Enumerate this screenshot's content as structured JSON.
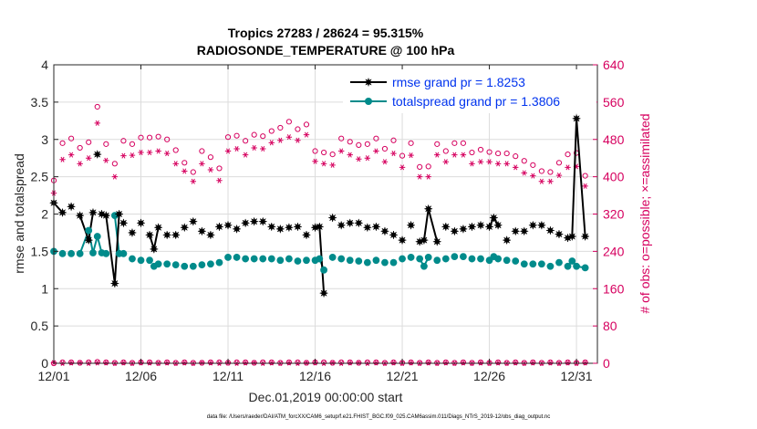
{
  "chart_data": {
    "type": "line",
    "title_line1": "Tropics 27283 / 28624 = 95.315%",
    "title_line2": "RADIOSONDE_TEMPERATURE @ 100 hPa",
    "xlabel": "Dec.01,2019 00:00:00 start",
    "ylabel": "rmse and totalspread",
    "ylabel_right": "# of obs: o=possible; ×=assimilated",
    "footnote": "data file: /Users/raeder/DAI/ATM_forcXX/CAM6_setup/f.e21.FHIST_BGC.f09_025.CAM6assim.011/Diags_NTrS_2019-12/obs_diag_output.nc",
    "xlim": [
      0,
      31.2
    ],
    "ylim": [
      0,
      4
    ],
    "ylim_right": [
      0,
      640
    ],
    "xticks": [
      0,
      5,
      10,
      15,
      20,
      25,
      30
    ],
    "xtick_labels": [
      "12/01",
      "12/06",
      "12/11",
      "12/16",
      "12/21",
      "12/26",
      "12/31"
    ],
    "yticks": [
      0,
      0.5,
      1,
      1.5,
      2,
      2.5,
      3,
      3.5,
      4
    ],
    "ytick_labels": [
      "0",
      "0.5",
      "1",
      "1.5",
      "2",
      "2.5",
      "3",
      "3.5",
      "4"
    ],
    "yticks_right": [
      0,
      80,
      160,
      240,
      320,
      400,
      480,
      560,
      640
    ],
    "ytick_labels_right": [
      "0",
      "80",
      "160",
      "240",
      "320",
      "400",
      "480",
      "560",
      "640"
    ],
    "grid": true,
    "legend": "top-right",
    "series": [
      {
        "name": "rmse grand pr = 1.8253",
        "color": "#000000",
        "marker": "star",
        "x": [
          0,
          0.5,
          1,
          1.5,
          2,
          2.25,
          2.5,
          2.75,
          3,
          3.5,
          3.75,
          4,
          4.5,
          5,
          5.5,
          5.75,
          6,
          6.5,
          7,
          7.5,
          8,
          8.5,
          9,
          9.5,
          10,
          10.5,
          11,
          11.5,
          12,
          12.5,
          13,
          13.5,
          14,
          14.5,
          15,
          15.25,
          15.5,
          16,
          16.5,
          17,
          17.5,
          18,
          18.5,
          19,
          19.5,
          20,
          20.5,
          21,
          21.25,
          21.5,
          22,
          22.5,
          23,
          23.5,
          24,
          24.5,
          25,
          25.25,
          25.5,
          26,
          26.5,
          27,
          27.5,
          28,
          28.5,
          29,
          29.5,
          29.75,
          30,
          30.5
        ],
        "y": [
          2.15,
          2.02,
          2.1,
          1.98,
          1.65,
          2.02,
          2.8,
          2.0,
          1.98,
          1.07,
          2.0,
          1.88,
          1.75,
          1.88,
          1.72,
          1.53,
          1.82,
          1.72,
          1.72,
          1.82,
          1.9,
          1.77,
          1.72,
          1.83,
          1.85,
          1.8,
          1.88,
          1.9,
          1.9,
          1.83,
          1.8,
          1.82,
          1.83,
          1.72,
          1.82,
          1.83,
          0.94,
          1.95,
          1.85,
          1.88,
          1.88,
          1.82,
          1.83,
          1.77,
          1.72,
          1.65,
          1.85,
          1.63,
          1.65,
          2.07,
          1.63,
          1.83,
          1.77,
          1.8,
          1.83,
          1.85,
          1.83,
          1.95,
          1.85,
          1.65,
          1.77,
          1.77,
          1.85,
          1.85,
          1.78,
          1.73,
          1.68,
          1.7,
          3.28,
          1.7
        ],
        "line_segments": [
          [
            0,
            0.5
          ],
          [
            1.5,
            2,
            2.25
          ],
          [
            2.75,
            3,
            3.5,
            3.75
          ],
          [
            5.5,
            5.75,
            6
          ],
          [
            15,
            15.25,
            15.5
          ],
          [
            21,
            21.25,
            21.5,
            22
          ],
          [
            25,
            25.25,
            25.5
          ],
          [
            29.5,
            29.75,
            30,
            30.5
          ]
        ]
      },
      {
        "name": "totalspread grand pr = 1.3806",
        "color": "#008b8b",
        "marker": "circle-filled",
        "x": [
          0,
          0.5,
          1,
          1.5,
          2,
          2.25,
          2.5,
          2.75,
          3,
          3.5,
          3.75,
          4,
          4.5,
          5,
          5.5,
          5.75,
          6,
          6.5,
          7,
          7.5,
          8,
          8.5,
          9,
          9.5,
          10,
          10.5,
          11,
          11.5,
          12,
          12.5,
          13,
          13.5,
          14,
          14.5,
          15,
          15.25,
          15.5,
          16,
          16.5,
          17,
          17.5,
          18,
          18.5,
          19,
          19.5,
          20,
          20.5,
          21,
          21.25,
          21.5,
          22,
          22.5,
          23,
          23.5,
          24,
          24.5,
          25,
          25.25,
          25.5,
          26,
          26.5,
          27,
          27.5,
          28,
          28.5,
          29,
          29.5,
          29.75,
          30,
          30.5
        ],
        "y": [
          1.5,
          1.47,
          1.47,
          1.47,
          1.78,
          1.48,
          1.7,
          1.48,
          1.47,
          1.98,
          1.47,
          1.47,
          1.4,
          1.38,
          1.38,
          1.3,
          1.33,
          1.33,
          1.32,
          1.3,
          1.3,
          1.32,
          1.33,
          1.35,
          1.42,
          1.42,
          1.4,
          1.4,
          1.4,
          1.4,
          1.38,
          1.4,
          1.37,
          1.38,
          1.38,
          1.4,
          1.25,
          1.42,
          1.4,
          1.38,
          1.37,
          1.35,
          1.38,
          1.35,
          1.35,
          1.4,
          1.42,
          1.4,
          1.3,
          1.42,
          1.38,
          1.4,
          1.43,
          1.43,
          1.4,
          1.4,
          1.38,
          1.43,
          1.4,
          1.38,
          1.37,
          1.33,
          1.33,
          1.33,
          1.3,
          1.35,
          1.3,
          1.37,
          1.3,
          1.28
        ],
        "line_segments": [
          [
            1.5,
            2,
            2.25
          ],
          [
            2.25,
            2.5,
            2.75
          ],
          [
            3.5,
            3.75
          ],
          [
            3.75,
            4
          ],
          [
            15,
            15.25,
            15.5
          ],
          [
            21,
            21.25,
            21.5
          ],
          [
            29.5,
            29.75,
            30,
            30.5
          ]
        ]
      },
      {
        "name": "# possible",
        "axis": "right",
        "color": "#d6005f",
        "marker": "circle-open",
        "x": [
          0,
          0.5,
          1,
          1.5,
          2,
          2.5,
          3,
          3.5,
          4,
          4.5,
          5,
          5.5,
          6,
          6.5,
          7,
          7.5,
          8,
          8.5,
          9,
          9.5,
          10,
          10.5,
          11,
          11.5,
          12,
          12.5,
          13,
          13.5,
          14,
          14.5,
          15,
          15.5,
          16,
          16.5,
          17,
          17.5,
          18,
          18.5,
          19,
          19.5,
          20,
          20.5,
          21,
          21.5,
          22,
          22.5,
          23,
          23.5,
          24,
          24.5,
          25,
          25.5,
          26,
          26.5,
          27,
          27.5,
          28,
          28.5,
          29,
          29.5,
          30,
          30.5
        ],
        "y": [
          392,
          472,
          482,
          462,
          474,
          550,
          470,
          428,
          477,
          470,
          484,
          484,
          486,
          480,
          457,
          430,
          410,
          455,
          442,
          418,
          485,
          488,
          477,
          490,
          487,
          498,
          505,
          518,
          502,
          512,
          455,
          452,
          448,
          482,
          475,
          468,
          470,
          482,
          460,
          478,
          445,
          472,
          421,
          422,
          470,
          455,
          472,
          472,
          452,
          458,
          453,
          450,
          450,
          444,
          434,
          425,
          412,
          410,
          430,
          448,
          451,
          402
        ],
        "y_low": [
          0,
          2,
          2,
          1,
          2,
          3,
          2,
          1,
          2,
          1,
          2,
          2,
          1,
          2,
          1,
          2,
          1,
          1,
          2,
          2,
          1,
          2,
          2,
          1,
          2,
          2,
          1,
          2,
          2,
          1,
          2,
          2,
          1,
          2,
          2,
          1,
          2,
          2,
          1,
          2,
          1,
          2,
          1,
          2,
          1,
          2,
          1,
          2,
          1,
          2,
          1,
          2,
          1,
          2,
          1,
          2,
          1,
          2,
          1,
          2,
          1,
          2
        ]
      },
      {
        "name": "# assimilated",
        "axis": "right",
        "color": "#d6005f",
        "marker": "asterisk",
        "x": [
          0,
          0.5,
          1,
          1.5,
          2,
          2.5,
          3,
          3.5,
          4,
          4.5,
          5,
          5.5,
          6,
          6.5,
          7,
          7.5,
          8,
          8.5,
          9,
          9.5,
          10,
          10.5,
          11,
          11.5,
          12,
          12.5,
          13,
          13.5,
          14,
          14.5,
          15,
          15.5,
          16,
          16.5,
          17,
          17.5,
          18,
          18.5,
          19,
          19.5,
          20,
          20.5,
          21,
          21.5,
          22,
          22.5,
          23,
          23.5,
          24,
          24.5,
          25,
          25.5,
          26,
          26.5,
          27,
          27.5,
          28,
          28.5,
          29,
          29.5,
          30,
          30.5
        ],
        "y": [
          365,
          437,
          447,
          428,
          440,
          515,
          435,
          400,
          445,
          446,
          452,
          452,
          455,
          450,
          428,
          412,
          390,
          428,
          415,
          392,
          455,
          460,
          447,
          462,
          460,
          473,
          478,
          485,
          478,
          490,
          433,
          428,
          425,
          455,
          447,
          438,
          440,
          455,
          432,
          450,
          420,
          446,
          400,
          400,
          447,
          432,
          447,
          447,
          428,
          432,
          432,
          428,
          428,
          420,
          408,
          402,
          390,
          390,
          403,
          420,
          422,
          380
        ],
        "y_low": [
          1,
          0,
          1,
          1,
          0,
          1,
          1,
          0,
          1,
          0,
          1,
          1,
          0,
          1,
          0,
          1,
          0,
          1,
          1,
          0,
          1,
          0,
          1,
          1,
          0,
          1,
          0,
          1,
          0,
          1,
          1,
          0,
          1,
          0,
          1,
          1,
          0,
          1,
          0,
          1,
          0,
          1,
          0,
          1,
          0,
          1,
          0,
          1,
          0,
          1,
          0,
          1,
          0,
          1,
          0,
          1,
          0,
          1,
          0,
          1,
          0,
          1
        ]
      }
    ]
  }
}
